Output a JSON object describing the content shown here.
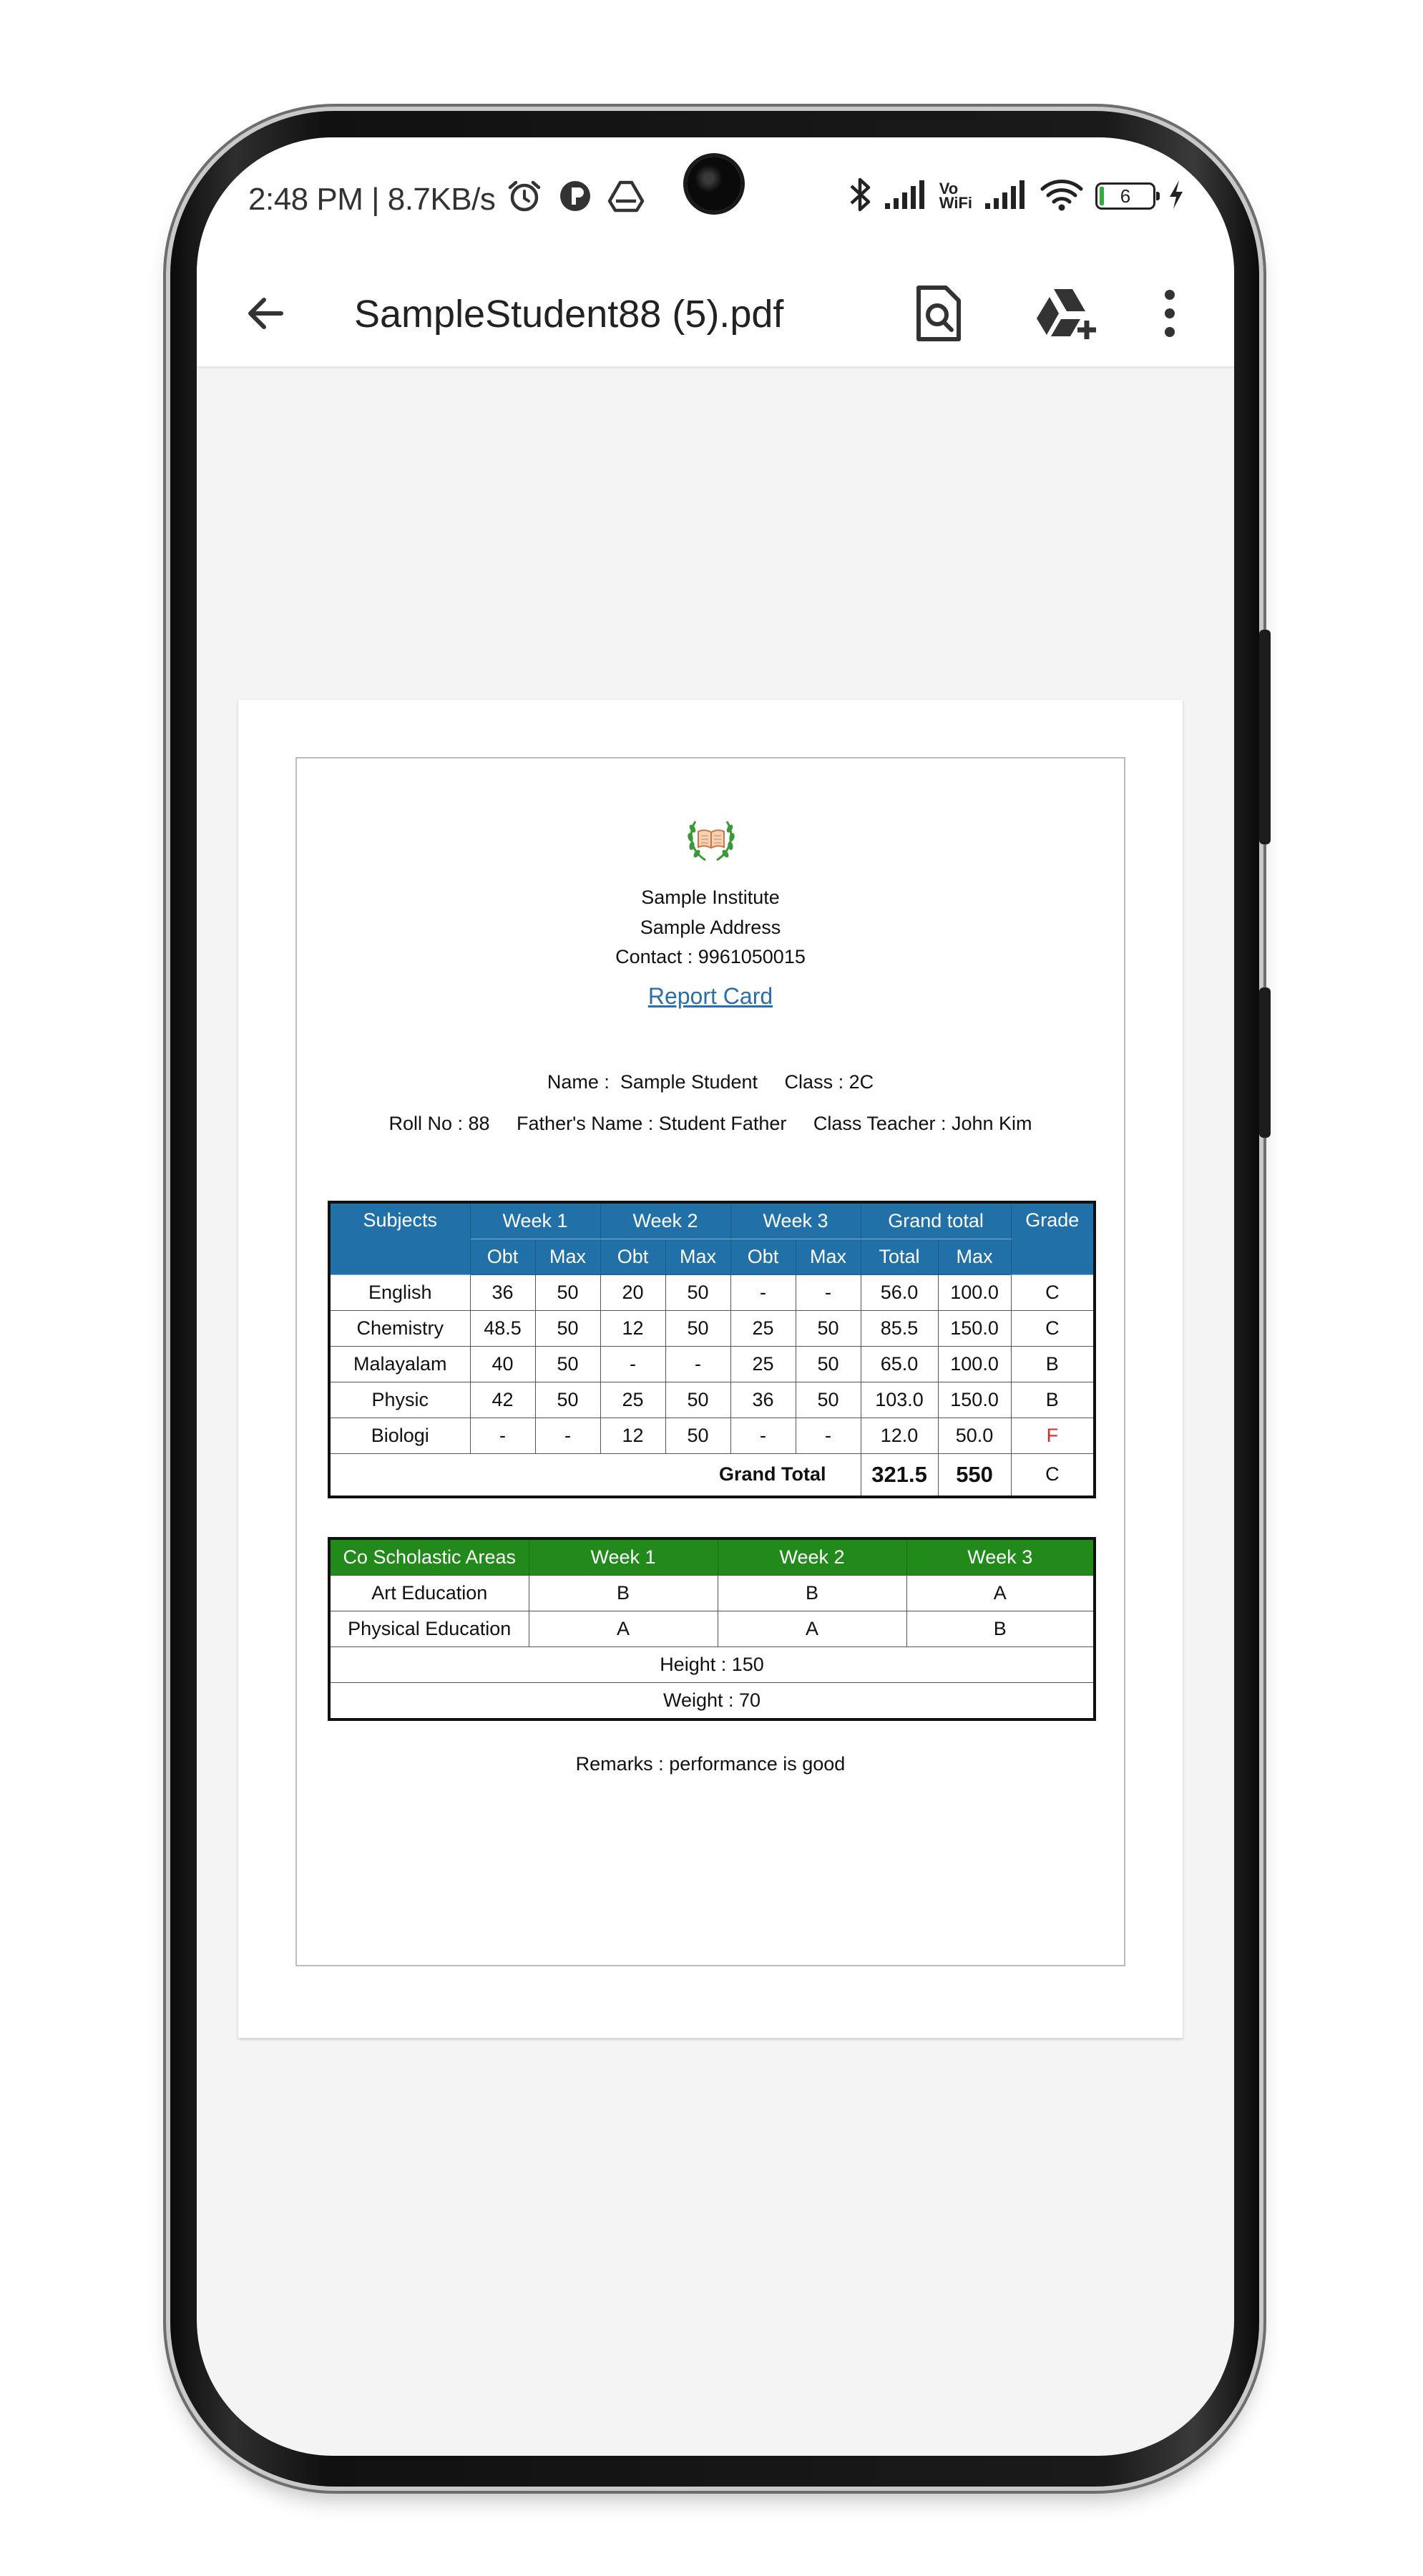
{
  "status_bar": {
    "time": "2:48 PM | 8.7KB/s",
    "left_icons": [
      "alarm-icon",
      "circle-app-icon",
      "drive-notification-icon"
    ],
    "right_icons": [
      "bluetooth-icon",
      "signal-icon",
      "vowifi-icon",
      "signal-icon",
      "wifi-icon",
      "battery-icon",
      "charging-icon"
    ],
    "vowifi_top": "Vo",
    "vowifi_bottom": "WiFi",
    "battery_level": "6"
  },
  "toolbar": {
    "back_icon": "arrow-back-icon",
    "title": "SampleStudent88 (5).pdf",
    "actions": [
      "search-document-icon",
      "drive-add-icon",
      "more-vert-icon"
    ]
  },
  "document": {
    "logo_icon": "institute-book-laurel-icon",
    "institute": "Sample Institute",
    "address": "Sample Address",
    "contact": "Contact : 9961050015",
    "report_title": "Report Card",
    "name_line": "Name :  Sample Student     Class : 2C",
    "info_line": "Roll No : 88     Father's Name : Student Father     Class Teacher : John Kim",
    "marks_table": {
      "headers": {
        "subjects": "Subjects",
        "week1": "Week 1",
        "week2": "Week 2",
        "week3": "Week 3",
        "grand_total": "Grand total",
        "grade": "Grade"
      },
      "subheaders": [
        "Obt",
        "Max",
        "Obt",
        "Max",
        "Obt",
        "Max",
        "Total",
        "Max"
      ],
      "rows": [
        {
          "subject": "English",
          "w1_obt": "36",
          "w1_max": "50",
          "w2_obt": "20",
          "w2_max": "50",
          "w3_obt": "-",
          "w3_max": "-",
          "total": "56.0",
          "max": "100.0",
          "grade": "C"
        },
        {
          "subject": "Chemistry",
          "w1_obt": "48.5",
          "w1_max": "50",
          "w2_obt": "12",
          "w2_max": "50",
          "w3_obt": "25",
          "w3_max": "50",
          "total": "85.5",
          "max": "150.0",
          "grade": "C"
        },
        {
          "subject": "Malayalam",
          "w1_obt": "40",
          "w1_max": "50",
          "w2_obt": "-",
          "w2_max": "-",
          "w3_obt": "25",
          "w3_max": "50",
          "total": "65.0",
          "max": "100.0",
          "grade": "B"
        },
        {
          "subject": "Physic",
          "w1_obt": "42",
          "w1_max": "50",
          "w2_obt": "25",
          "w2_max": "50",
          "w3_obt": "36",
          "w3_max": "50",
          "total": "103.0",
          "max": "150.0",
          "grade": "B"
        },
        {
          "subject": "Biologi",
          "w1_obt": "-",
          "w1_max": "-",
          "w2_obt": "12",
          "w2_max": "50",
          "w3_obt": "-",
          "w3_max": "-",
          "total": "12.0",
          "max": "50.0",
          "grade": "F"
        }
      ],
      "grand_total_label": "Grand Total",
      "grand_total_obtained": "321.5",
      "grand_total_max": "550",
      "grand_total_grade": "C",
      "fail_color": "#d62b2b",
      "header_color": "#2270a8"
    },
    "coscholastic_table": {
      "headers": {
        "area": "Co Scholastic Areas",
        "week1": "Week 1",
        "week2": "Week 2",
        "week3": "Week 3"
      },
      "rows": [
        {
          "area": "Art Education",
          "week1": "B",
          "week2": "B",
          "week3": "A"
        },
        {
          "area": "Physical Education",
          "week1": "A",
          "week2": "A",
          "week3": "B"
        }
      ],
      "height": "Height : 150",
      "weight": "Weight : 70",
      "header_color": "#228a1a"
    },
    "remarks": "Remarks : performance is good"
  }
}
